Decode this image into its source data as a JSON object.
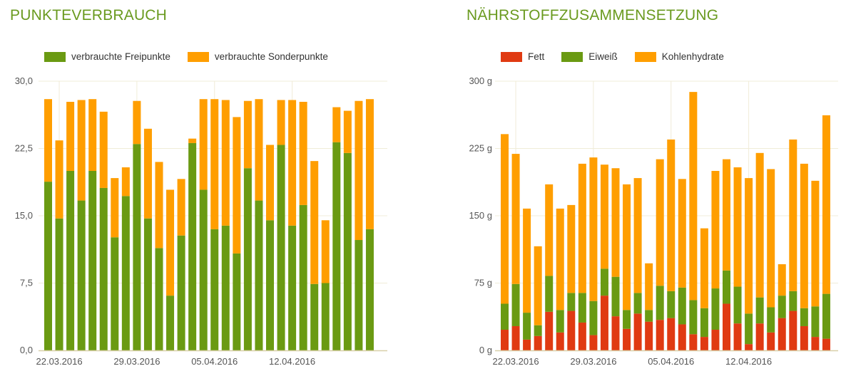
{
  "left": {
    "title": "PUNKTEVERBRAUCH",
    "legend": [
      {
        "label": "verbrauchte Freipunkte",
        "color": "#6a9a12"
      },
      {
        "label": "verbrauchte Sonderpunkte",
        "color": "#ff9e00"
      }
    ]
  },
  "right": {
    "title": "NÄHRSTOFFZUSAMMENSETZUNG",
    "legend": [
      {
        "label": "Fett",
        "color": "#e03a12"
      },
      {
        "label": "Eiweiß",
        "color": "#6a9a12"
      },
      {
        "label": "Kohlenhydrate",
        "color": "#ff9e00"
      }
    ]
  },
  "chart_data": [
    {
      "type": "bar",
      "stacked": true,
      "title": "PUNKTEVERBRAUCH",
      "ylim": [
        0,
        30
      ],
      "yticks": [
        "0,0",
        "7,5",
        "15,0",
        "22,5",
        "30,0"
      ],
      "xticks": [
        "22.03.2016",
        "29.03.2016",
        "05.04.2016",
        "12.04.2016"
      ],
      "legend_position": "top-left",
      "grid": true,
      "series": [
        {
          "name": "verbrauchte Freipunkte",
          "color": "#6a9a12",
          "values": [
            18.8,
            14.7,
            20.0,
            16.7,
            20.0,
            18.1,
            12.6,
            17.2,
            23.0,
            14.7,
            11.4,
            6.1,
            12.8,
            23.1,
            17.9,
            13.5,
            13.9,
            10.8,
            20.3,
            16.7,
            14.5,
            22.9,
            13.9,
            16.2,
            7.4,
            7.5,
            23.2,
            22.0,
            12.3,
            13.5
          ]
        },
        {
          "name": "verbrauchte Sonderpunkte",
          "color": "#ff9e00",
          "values": [
            9.2,
            8.7,
            7.7,
            11.2,
            8.0,
            8.5,
            6.6,
            3.2,
            4.8,
            10.0,
            9.6,
            11.8,
            6.3,
            0.5,
            10.1,
            14.5,
            14.0,
            15.2,
            7.5,
            11.3,
            8.4,
            5.0,
            14.0,
            11.5,
            13.7,
            7.0,
            3.9,
            4.7,
            15.5,
            14.5
          ]
        }
      ]
    },
    {
      "type": "bar",
      "stacked": true,
      "title": "NÄHRSTOFFZUSAMMENSETZUNG",
      "ylim": [
        0,
        300
      ],
      "yticks": [
        "0 g",
        "75 g",
        "150 g",
        "225 g",
        "300 g"
      ],
      "xticks": [
        "22.03.2016",
        "29.03.2016",
        "05.04.2016",
        "12.04.2016"
      ],
      "legend_position": "top-left",
      "grid": true,
      "series": [
        {
          "name": "Fett",
          "color": "#e03a12",
          "values": [
            23,
            27,
            12,
            16,
            43,
            20,
            44,
            31,
            17,
            61,
            38,
            24,
            41,
            32,
            34,
            36,
            29,
            18,
            15,
            23,
            52,
            30,
            7,
            30,
            20,
            36,
            44,
            27,
            15,
            13
          ]
        },
        {
          "name": "Eiweiß",
          "color": "#6a9a12",
          "values": [
            29,
            47,
            30,
            12,
            40,
            25,
            20,
            33,
            38,
            30,
            44,
            21,
            23,
            13,
            38,
            30,
            41,
            38,
            32,
            46,
            37,
            41,
            34,
            29,
            28,
            25,
            22,
            20,
            34,
            50
          ]
        },
        {
          "name": "Kohlenhydrate",
          "color": "#ff9e00",
          "values": [
            189,
            145,
            116,
            88,
            102,
            113,
            98,
            144,
            160,
            116,
            121,
            140,
            128,
            52,
            141,
            169,
            121,
            232,
            89,
            131,
            124,
            133,
            151,
            161,
            154,
            35,
            169,
            161,
            140,
            199
          ]
        }
      ]
    }
  ]
}
